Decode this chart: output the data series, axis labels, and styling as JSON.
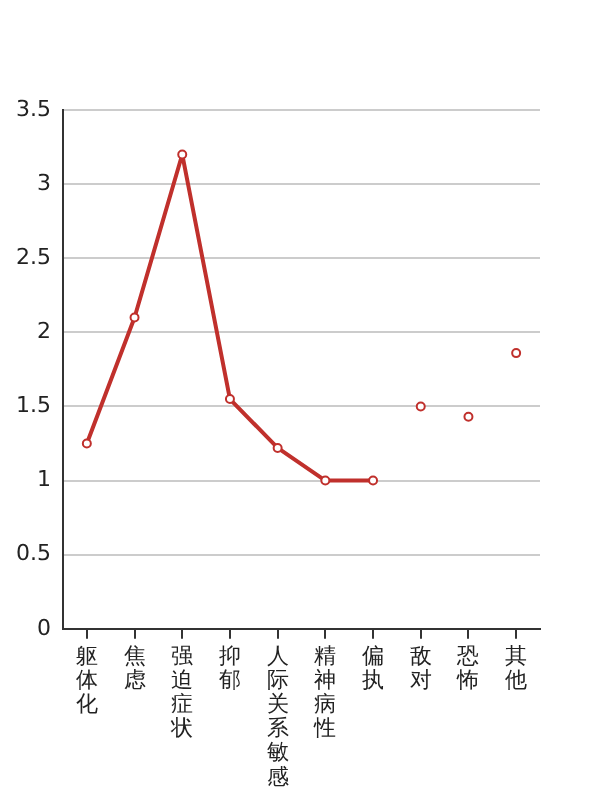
{
  "chart_data": {
    "type": "line",
    "categories": [
      "躯体化",
      "焦虑",
      "强迫症状",
      "抑郁",
      "人际关系敏感",
      "精神病性",
      "偏执",
      "敌对",
      "恐怖",
      "其他"
    ],
    "series": [
      {
        "color": "#c0302c",
        "values": [
          1.25,
          2.1,
          3.2,
          1.55,
          1.22,
          1.0,
          1.0,
          null,
          null,
          null
        ]
      },
      {
        "type": "scatter",
        "color": "#c0302c",
        "values": [
          null,
          null,
          null,
          null,
          null,
          null,
          null,
          1.5,
          1.43,
          1.86
        ]
      }
    ],
    "ylim": [
      0,
      3.5
    ],
    "yticks": [
      0,
      0.5,
      1,
      1.5,
      2,
      2.5,
      3,
      3.5
    ],
    "grid": "y",
    "legend": false,
    "marker": "circle"
  }
}
